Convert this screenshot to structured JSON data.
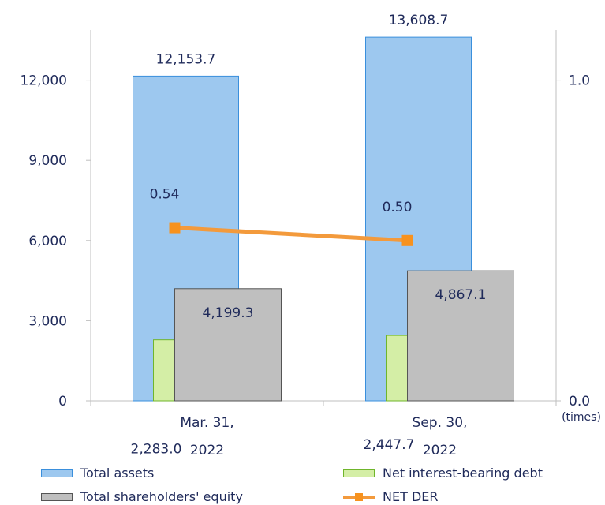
{
  "chart_data": {
    "type": "bar",
    "categories": [
      [
        "Mar. 31,",
        "2022"
      ],
      [
        "Sep. 30,",
        "2022"
      ]
    ],
    "series": [
      {
        "name": "Total assets",
        "values": [
          12153.7,
          13608.7
        ],
        "labels": [
          "12,153.7",
          "13,608.7"
        ],
        "color": "#9dc8ef",
        "stroke": "#3a8fdc"
      },
      {
        "name": "Net interest-bearing debt",
        "values": [
          2283.0,
          2447.7
        ],
        "labels": [
          "2,283.0",
          "2,447.7"
        ],
        "color": "#d4eea6",
        "stroke": "#6fb52b"
      },
      {
        "name": "Total shareholders' equity",
        "values": [
          4199.3,
          4867.1
        ],
        "labels": [
          "4,199.3",
          "4,867.1"
        ],
        "color": "#bfbfbf",
        "stroke": "#555555"
      }
    ],
    "line_series": {
      "name": "NET DER",
      "axis": "right",
      "values": [
        0.54,
        0.5
      ],
      "labels": [
        "0.54",
        "0.50"
      ],
      "color": "#f39a3c",
      "marker_color": "#f7921e"
    },
    "left_axis": {
      "ylim": [
        0,
        15000
      ],
      "ticks": [
        0,
        3000,
        6000,
        9000,
        12000
      ],
      "tick_labels": [
        "0",
        "3,000",
        "6,000",
        "9,000",
        "12,000"
      ]
    },
    "right_axis": {
      "ylim": [
        0,
        1.25
      ],
      "ticks": [
        0.0,
        1.0
      ],
      "tick_labels": [
        "0.0",
        "1.0"
      ],
      "unit": "(times)"
    },
    "legend": [
      {
        "label": "Total assets",
        "kind": "box",
        "color": "#9dc8ef",
        "stroke": "#3a8fdc"
      },
      {
        "label": "Net interest-bearing debt",
        "kind": "box",
        "color": "#d4eea6",
        "stroke": "#6fb52b"
      },
      {
        "label": "Total shareholders' equity",
        "kind": "box",
        "color": "#bfbfbf",
        "stroke": "#555555"
      },
      {
        "label": "NET DER",
        "kind": "line",
        "color": "#f39a3c",
        "marker_color": "#f7921e"
      }
    ],
    "legend_position": "bottom",
    "grid": false
  }
}
